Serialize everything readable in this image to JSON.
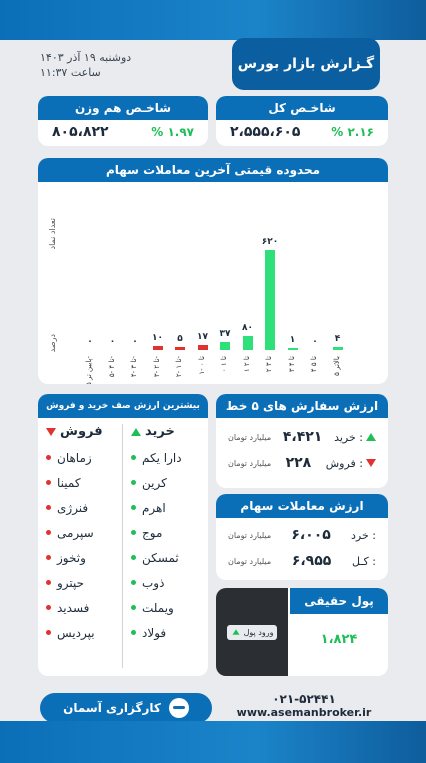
{
  "header": {
    "title": "گـزارش بازار بورس",
    "date": "دوشنبه ۱۹ آذر ۱۴۰۳",
    "time": "ساعت ۱۱:۳۷"
  },
  "index_total": {
    "title": "شاخـص کل",
    "value": "۲،۵۵۵،۶۰۵",
    "change": "% ۲.۱۶"
  },
  "index_equal": {
    "title": "شاخـص هم وزن",
    "value": "۸۰۵،۸۲۲",
    "change": "% ۱.۹۷"
  },
  "chart": {
    "title": "محدوده قیمتی آخرین معاملات سهام",
    "ylabel_top": "تعداد نماد",
    "ylabel_bottom": "درصد"
  },
  "chart_data": {
    "type": "bar",
    "title": "محدوده قیمتی آخرین معاملات سهام",
    "ylabel": "تعداد نماد",
    "xlabel": "درصد",
    "categories": [
      "پایین تر ۵-",
      "۵- تا ۴-",
      "۴- تا ۳-",
      "۳- تا ۲-",
      "۲- تا ۱-",
      "۱- تا ۰",
      "۰ تا ۱",
      "۱ تا ۲",
      "۲ تا ۳",
      "۳ تا ۴",
      "۴ تا ۵",
      "بالاتر ۵"
    ],
    "values": [
      0,
      0,
      0,
      10,
      5,
      17,
      37,
      80,
      620,
      1,
      0,
      4
    ],
    "labels": [
      "۰",
      "۰",
      "۰",
      "۱۰",
      "۵",
      "۱۷",
      "۳۷",
      "۸۰",
      "۶۲۰",
      "۱",
      "۰",
      "۴"
    ],
    "colors": [
      "#e0322f",
      "#e0322f",
      "#e0322f",
      "#e0322f",
      "#e0322f",
      "#e0322f",
      "#2ee07a",
      "#2ee07a",
      "#2ee07a",
      "#2ee07a",
      "#2ee07a",
      "#2ee07a"
    ],
    "ylim": [
      0,
      620
    ]
  },
  "queue": {
    "title": "بیشترین ارزش صف خرید و فروش",
    "buy_label": "خرید",
    "sell_label": "فروش",
    "buy": [
      "دارا یکم",
      "کرین",
      "اهرم",
      "موج",
      "ثمسکن",
      "ذوب",
      "ویملت",
      "فولاد"
    ],
    "sell": [
      "زماهان",
      "کمینا",
      "فنرژی",
      "سپرمی",
      "وثخوز",
      "حپترو",
      "فسدید",
      "بپردیس"
    ]
  },
  "orders": {
    "title": "ارزش سفارش های ۵ خط اول",
    "buy_label": "خرید :",
    "buy_value": "۴،۴۲۱",
    "sell_label": "فروش :",
    "sell_value": "۲۲۸",
    "unit": "میلیارد تومان"
  },
  "trades": {
    "title": "ارزش معاملات سهام",
    "buy_label": "خرد :",
    "buy_value": "۶،۰۰۵",
    "total_label": "کـل :",
    "total_value": "۶،۹۵۵",
    "unit": "میلیارد تومان"
  },
  "money": {
    "title": "پول حقیقی",
    "chip": "ورود پول",
    "value": "۱،۸۲۴"
  },
  "footer": {
    "brand": "کارگزاری آسمان",
    "phone": "۰۲۱-۵۲۴۴۱",
    "site": "www.asemanbroker.ir"
  }
}
